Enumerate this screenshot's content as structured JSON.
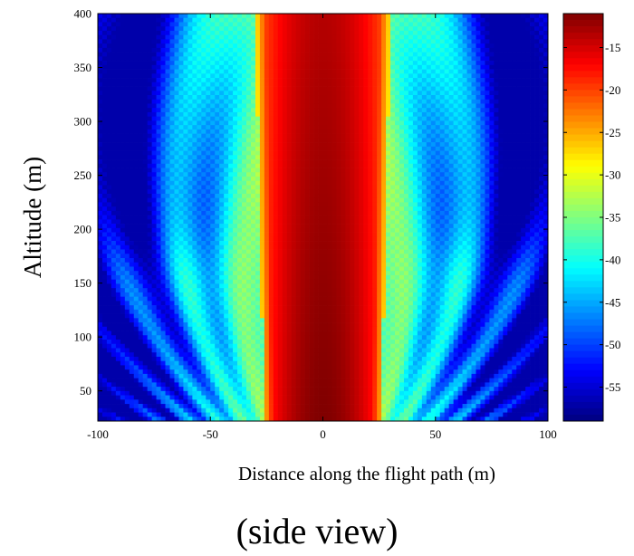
{
  "chart_data": {
    "type": "heatmap",
    "title": "",
    "xlabel": "Distance along the flight path (m)",
    "ylabel": "Altitude (m)",
    "xlim": [
      -100,
      100
    ],
    "ylim": [
      22,
      400
    ],
    "x_ticks": [
      -100,
      -50,
      0,
      50,
      100
    ],
    "y_ticks": [
      50,
      100,
      150,
      200,
      250,
      300,
      350,
      400
    ],
    "colorbar": {
      "colormap": "jet",
      "range": [
        -59,
        -11
      ],
      "ticks": [
        -15,
        -20,
        -25,
        -30,
        -35,
        -40,
        -45,
        -50,
        -55
      ]
    },
    "grid": false,
    "legend": "none",
    "pattern_summary": {
      "beam_peak_level": -11,
      "beam_half_width_at_bottom_m": 26,
      "beam_half_width_at_top_m": 30,
      "sidelobe_floor_level": -57
    }
  },
  "caption": "(side view)"
}
